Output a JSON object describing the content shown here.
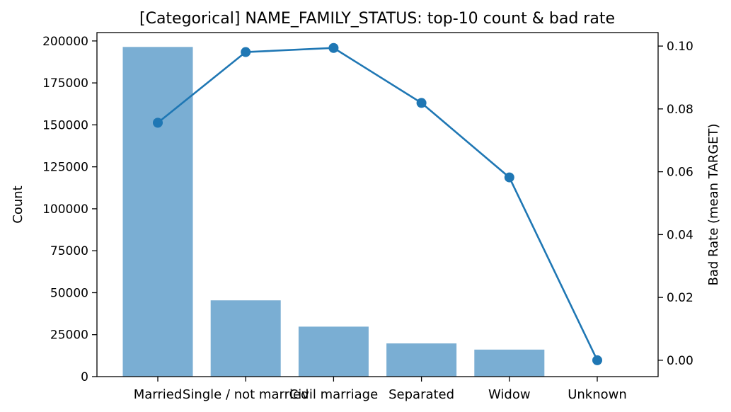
{
  "chart_data": {
    "type": "bar",
    "title": "[Categorical] NAME_FAMILY_STATUS: top-10 count & bad rate",
    "categories": [
      "Married",
      "Single / not married",
      "Civil marriage",
      "Separated",
      "Widow",
      "Unknown"
    ],
    "ylabel": "Count",
    "ylabel_right": "Bad Rate (mean TARGET)",
    "ylim": [
      0,
      205000
    ],
    "ylim_right": [
      -0.0052,
      0.1043
    ],
    "yticks": [
      0,
      25000,
      50000,
      75000,
      100000,
      125000,
      150000,
      175000,
      200000
    ],
    "yticks_right": [
      "0.00",
      "0.02",
      "0.04",
      "0.06",
      "0.08",
      "0.10"
    ],
    "grid": false,
    "series": [
      {
        "type": "bar",
        "axis": "left",
        "values": [
          196432,
          45444,
          29775,
          19770,
          16088,
          2
        ],
        "color": "#7aaed3"
      },
      {
        "type": "line",
        "axis": "right",
        "values": [
          0.0756,
          0.0981,
          0.0994,
          0.0819,
          0.0582,
          0.0
        ],
        "color": "#1f77b4"
      }
    ]
  }
}
